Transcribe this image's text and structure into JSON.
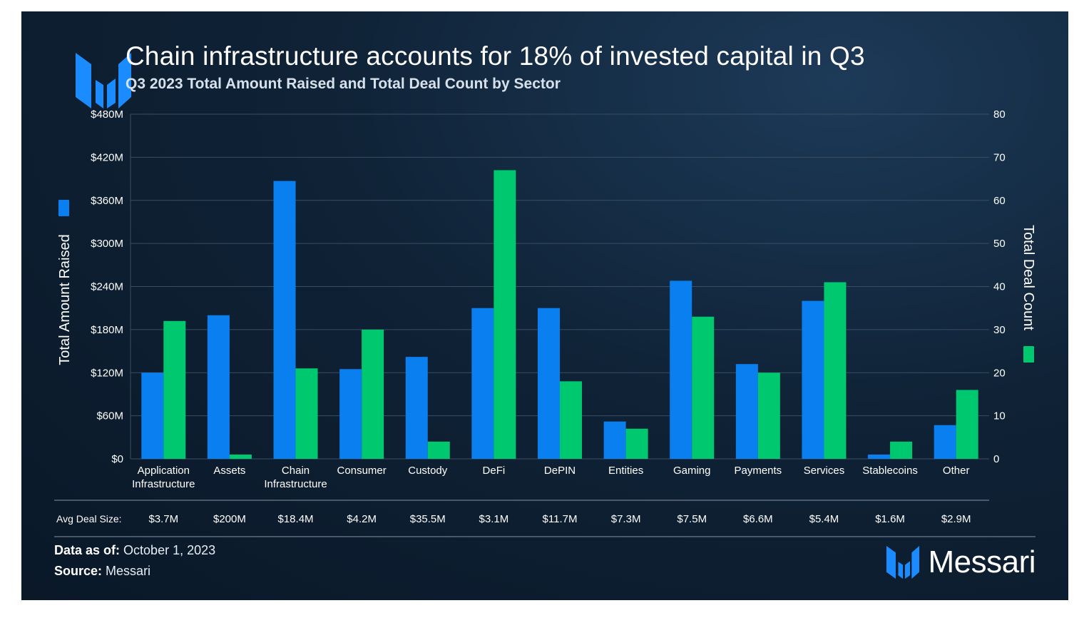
{
  "header": {
    "title": "Chain infrastructure accounts for 18% of invested capital in Q3",
    "subtitle": "Q3 2023 Total Amount Raised and Total Deal Count by Sector"
  },
  "colors": {
    "amount_raised": "#0a80f0",
    "deal_count": "#00c86e",
    "grid": "#3a4e63",
    "axis_text": "#ffffff"
  },
  "chart_data": {
    "type": "bar",
    "title": "Q3 2023 Total Amount Raised and Total Deal Count by Sector",
    "categories": [
      [
        "Application",
        "Infrastructure"
      ],
      [
        "Assets"
      ],
      [
        "Chain",
        "Infrastructure"
      ],
      [
        "Consumer"
      ],
      [
        "Custody"
      ],
      [
        "DeFi"
      ],
      [
        "DePIN"
      ],
      [
        "Entities"
      ],
      [
        "Gaming"
      ],
      [
        "Payments"
      ],
      [
        "Services"
      ],
      [
        "Stablecoins"
      ],
      [
        "Other"
      ]
    ],
    "series": [
      {
        "name": "Total Amount Raised",
        "axis": "left",
        "unit": "$M",
        "values": [
          120,
          200,
          387,
          125,
          142,
          210,
          210,
          52,
          248,
          132,
          220,
          6,
          47
        ]
      },
      {
        "name": "Total Deal Count",
        "axis": "right",
        "unit": "deals",
        "values": [
          32,
          1,
          21,
          30,
          4,
          67,
          18,
          7,
          33,
          20,
          41,
          4,
          16
        ]
      }
    ],
    "left_axis": {
      "label": "Total Amount Raised",
      "ylim": [
        0,
        480
      ],
      "ticks": [
        "$0",
        "$60M",
        "$120M",
        "$180M",
        "$240M",
        "$300M",
        "$360M",
        "$420M",
        "$480M"
      ]
    },
    "right_axis": {
      "label": "Total Deal Count",
      "ylim": [
        0,
        80
      ],
      "ticks": [
        "0",
        "10",
        "20",
        "30",
        "40",
        "50",
        "60",
        "70",
        "80"
      ]
    },
    "grid": true,
    "avg_deal_size": {
      "label": "Avg Deal Size:",
      "values": [
        "$3.7M",
        "$200M",
        "$18.4M",
        "$4.2M",
        "$35.5M",
        "$3.1M",
        "$11.7M",
        "$7.3M",
        "$7.5M",
        "$6.6M",
        "$5.4M",
        "$1.6M",
        "$2.9M"
      ]
    }
  },
  "footer": {
    "data_as_of_label": "Data as of:",
    "data_as_of_value": "October 1, 2023",
    "source_label": "Source:",
    "source_value": "Messari",
    "brand": "Messari"
  }
}
